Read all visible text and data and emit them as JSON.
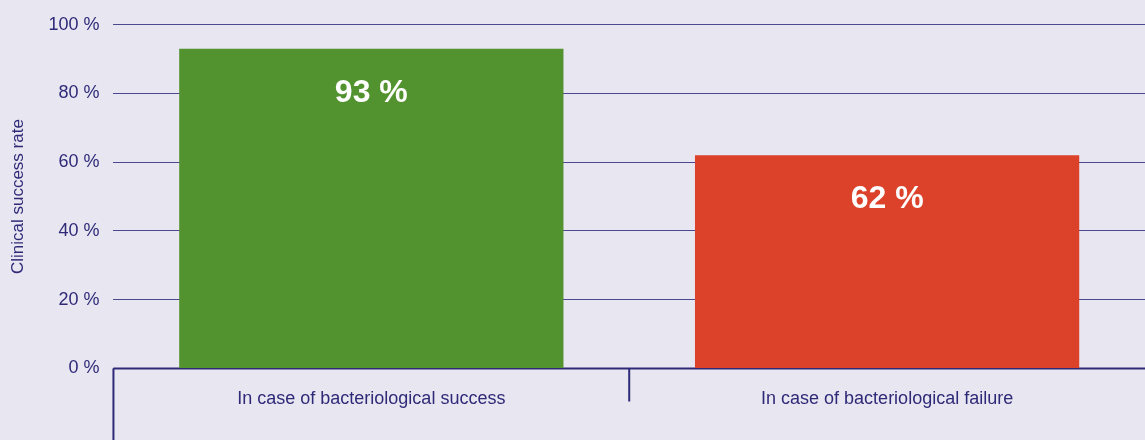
{
  "chart_data": {
    "type": "bar",
    "ylabel": "Clinical success rate",
    "categories": [
      "In case of bacteriological success",
      "In case of bacteriological failure"
    ],
    "values": [
      93,
      62
    ],
    "colors": [
      "#52922f",
      "#dc4129"
    ],
    "value_labels": [
      "93 %",
      "62 %"
    ],
    "ylim": [
      0,
      100
    ],
    "yticks": [
      {
        "value": 0,
        "label": "0 %"
      },
      {
        "value": 20,
        "label": "20 %"
      },
      {
        "value": 40,
        "label": "40 %"
      },
      {
        "value": 60,
        "label": "60 %"
      },
      {
        "value": 80,
        "label": "80 %"
      },
      {
        "value": 100,
        "label": "100 %"
      }
    ],
    "grid": "y",
    "legend": false
  }
}
